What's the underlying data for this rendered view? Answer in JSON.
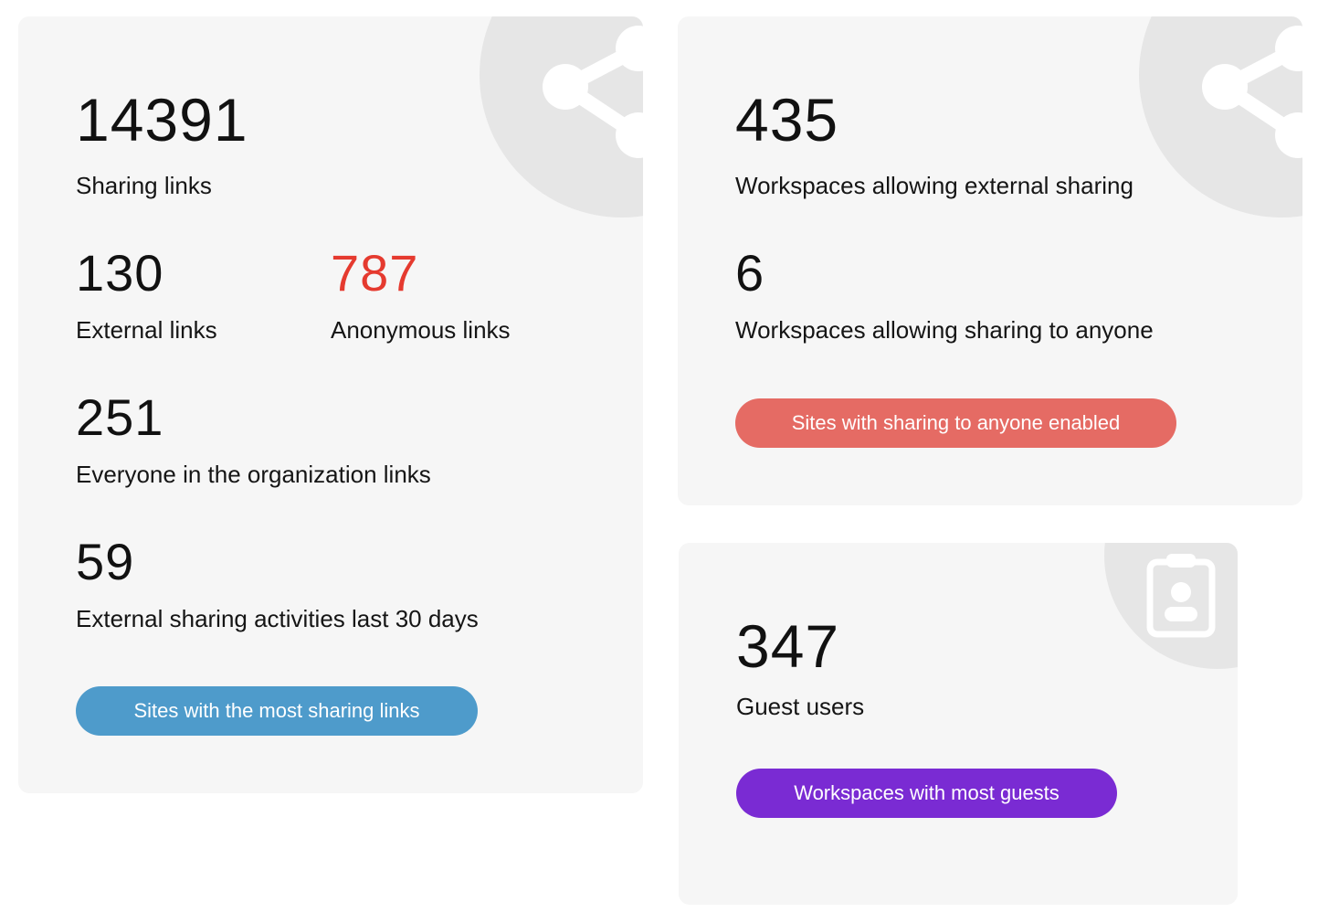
{
  "sharing_card": {
    "total_value": "14391",
    "total_label": "Sharing links",
    "external_value": "130",
    "external_label": "External links",
    "anonymous_value": "787",
    "anonymous_label": "Anonymous links",
    "org_value": "251",
    "org_label": "Everyone in the organization links",
    "activities_value": "59",
    "activities_label": "External sharing activities last 30 days",
    "button_label": "Sites with the most sharing links",
    "icon": "share-icon",
    "colors": {
      "anonymous_value": "#e53a2f",
      "button": "#4e9bcb"
    }
  },
  "workspaces_card": {
    "external_value": "435",
    "external_label": "Workspaces allowing external sharing",
    "anyone_value": "6",
    "anyone_label": "Workspaces allowing sharing to anyone",
    "button_label": "Sites with sharing to anyone enabled",
    "icon": "share-icon",
    "colors": {
      "button": "#e56b64"
    }
  },
  "guests_card": {
    "value": "347",
    "label": "Guest users",
    "button_label": "Workspaces with most guests",
    "icon": "guest-badge-icon",
    "colors": {
      "button": "#7a2bd3"
    }
  },
  "colors": {
    "card_background": "#f6f6f6",
    "decoration_circle": "#e6e6e6",
    "icon_fill": "#ffffff"
  }
}
